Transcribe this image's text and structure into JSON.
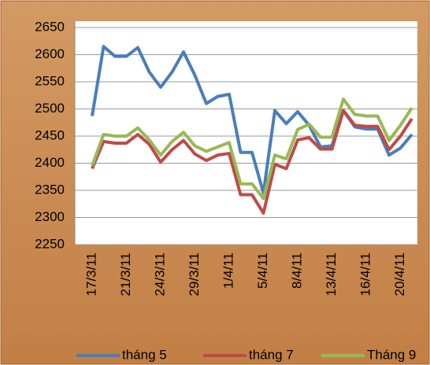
{
  "chart_data": {
    "type": "line",
    "categories": [
      "17/3/11",
      null,
      null,
      "21/3/11",
      null,
      null,
      "24/3/11",
      null,
      null,
      "29/3/11",
      null,
      null,
      "1/4/11",
      null,
      null,
      "5/4/11",
      null,
      null,
      "8/4/11",
      null,
      null,
      "13/4/11",
      null,
      null,
      "16/4/11",
      null,
      null,
      "20/4/11",
      null
    ],
    "series": [
      {
        "name": "tháng 5",
        "color": "#4a7ebb",
        "values": [
          2487,
          2615,
          2597,
          2597,
          2613,
          2568,
          2540,
          2568,
          2605,
          2562,
          2510,
          2523,
          2527,
          2420,
          2420,
          2345,
          2497,
          2473,
          2495,
          2470,
          2430,
          2432,
          2497,
          2467,
          2463,
          2463,
          2415,
          2428,
          2453
        ]
      },
      {
        "name": "tháng 7",
        "color": "#be4b48",
        "values": [
          2390,
          2440,
          2437,
          2437,
          2453,
          2435,
          2402,
          2425,
          2442,
          2417,
          2405,
          2415,
          2418,
          2342,
          2342,
          2308,
          2398,
          2390,
          2443,
          2447,
          2426,
          2426,
          2497,
          2470,
          2468,
          2468,
          2425,
          2450,
          2482
        ]
      },
      {
        "name": "Tháng 9",
        "color": "#98b954",
        "values": [
          2395,
          2453,
          2450,
          2450,
          2465,
          2443,
          2415,
          2440,
          2457,
          2432,
          2422,
          2430,
          2438,
          2362,
          2362,
          2335,
          2415,
          2408,
          2462,
          2472,
          2448,
          2448,
          2518,
          2490,
          2487,
          2487,
          2442,
          2470,
          2502
        ]
      }
    ],
    "ylim": [
      2250,
      2650
    ],
    "yticks": [
      2250,
      2300,
      2350,
      2400,
      2450,
      2500,
      2550,
      2600,
      2650
    ],
    "grid": true,
    "legend": "bottom"
  }
}
